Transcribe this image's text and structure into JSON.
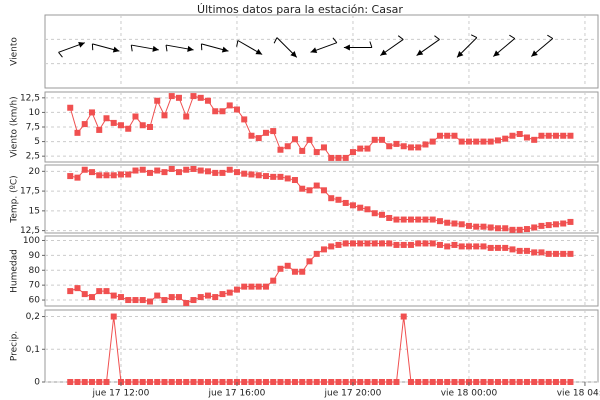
{
  "chart_data": {
    "type": "line",
    "title": "Últimos datos para la estación: Casar",
    "color": "#f05050",
    "grid": true,
    "x": [
      10.25,
      10.5,
      10.75,
      11,
      11.25,
      11.5,
      11.75,
      12,
      12.25,
      12.5,
      12.75,
      13,
      13.25,
      13.5,
      13.75,
      14,
      14.25,
      14.5,
      14.75,
      15,
      15.25,
      15.5,
      15.75,
      16,
      16.25,
      16.5,
      16.75,
      17,
      17.25,
      17.5,
      17.75,
      18,
      18.25,
      18.5,
      18.75,
      19,
      19.25,
      19.5,
      19.75,
      20,
      20.25,
      20.5,
      20.75,
      21,
      21.25,
      21.5,
      21.75,
      22,
      22.25,
      22.5,
      22.75,
      23,
      23.25,
      23.5,
      23.75,
      24,
      24.25,
      24.5,
      24.75,
      25,
      25.25,
      25.5,
      25.75,
      26,
      26.25,
      26.5,
      26.75,
      27,
      27.25,
      27.5
    ],
    "xlim": [
      9.38,
      28.45
    ],
    "xticks": [
      {
        "value": 12,
        "label": "jue 17 12:00"
      },
      {
        "value": 16,
        "label": "jue 17 16:00"
      },
      {
        "value": 20,
        "label": "jue 17 20:00"
      },
      {
        "value": 24,
        "label": "vie 18 00:00"
      },
      {
        "value": 28,
        "label": "vie 18 04:00"
      }
    ],
    "panels": [
      {
        "type": "arrows",
        "ylabel": "Viento",
        "x": [
          10.3,
          11.48,
          12.83,
          14.03,
          15.24,
          16.45,
          17.72,
          18.99,
          20.17,
          21.34,
          22.59,
          23.93,
          25.21,
          26.52
        ],
        "values": [
          70,
          105,
          100,
          100,
          105,
          120,
          135,
          250,
          270,
          235,
          235,
          225,
          230,
          230
        ]
      },
      {
        "type": "line",
        "ylabel": "Viento (km/h)",
        "ylim": [
          1.5,
          13.5
        ],
        "yticks": [
          {
            "value": 2.5,
            "label": "2,5"
          },
          5,
          {
            "value": 7.5,
            "label": "7,5"
          },
          10,
          {
            "value": 12.5,
            "label": "12,5"
          }
        ],
        "values": [
          10.8,
          6.5,
          8,
          10,
          7,
          9,
          8.2,
          7.8,
          7.2,
          9.3,
          7.8,
          7.5,
          12,
          9.5,
          12.8,
          12.5,
          9.3,
          12.8,
          12.5,
          12,
          10.2,
          10.2,
          11.2,
          10.5,
          8.8,
          6,
          5.6,
          6.5,
          6.8,
          3.6,
          4.2,
          5.4,
          3.4,
          5.3,
          3.2,
          4,
          2.2,
          2.2,
          2.2,
          3.2,
          3.8,
          3.8,
          5.3,
          5.3,
          4.2,
          4.6,
          4.2,
          4,
          4,
          4.5,
          5,
          6,
          6,
          6,
          5,
          5,
          5,
          5,
          5,
          5.2,
          5.5,
          6,
          6.3,
          5.7,
          5.3,
          6,
          6,
          6,
          6,
          6
        ]
      },
      {
        "type": "line",
        "ylabel": "Temp. (ºC)",
        "ylim": [
          12.2,
          20.8
        ],
        "yticks": [
          {
            "value": 12.5,
            "label": "12,5"
          },
          15,
          {
            "value": 17.5,
            "label": "17,5"
          },
          20
        ],
        "values": [
          19.4,
          19.2,
          20.2,
          19.9,
          19.5,
          19.5,
          19.5,
          19.6,
          19.6,
          20.1,
          20.2,
          19.8,
          20.1,
          19.9,
          20.3,
          19.9,
          20.2,
          20.3,
          20.1,
          20,
          19.8,
          19.8,
          20.2,
          19.9,
          19.7,
          19.6,
          19.5,
          19.4,
          19.3,
          19.3,
          19.1,
          18.9,
          17.8,
          17.6,
          18.2,
          17.6,
          16.6,
          16.4,
          16,
          15.7,
          15.4,
          15.2,
          14.7,
          14.5,
          14.1,
          13.9,
          13.9,
          13.9,
          13.9,
          13.9,
          13.9,
          13.7,
          13.5,
          13.4,
          13.3,
          13.1,
          13.0,
          13,
          12.9,
          12.8,
          12.8,
          12.6,
          12.6,
          12.7,
          12.9,
          13.1,
          13.2,
          13.3,
          13.4,
          13.6
        ]
      },
      {
        "type": "line",
        "ylabel": "Humedad",
        "ylim": [
          56,
          103
        ],
        "yticks": [
          60,
          70,
          80,
          90,
          100
        ],
        "values": [
          66,
          68,
          64,
          62,
          66,
          66,
          63,
          62,
          60,
          60,
          60,
          59,
          63,
          60,
          62,
          62,
          58,
          60,
          62,
          63,
          62,
          64,
          65,
          67,
          69,
          69,
          69,
          69,
          73,
          81,
          83,
          79,
          79,
          86,
          91,
          94,
          96,
          97,
          98,
          98,
          98,
          98,
          98,
          98,
          98,
          97,
          97,
          97,
          98,
          98,
          98,
          97,
          96,
          97,
          96,
          96,
          96,
          96,
          95,
          95,
          95,
          94,
          93,
          93,
          92,
          92,
          91,
          91,
          91,
          91
        ]
      },
      {
        "type": "line",
        "ylabel": "Precip.",
        "ylim": [
          0,
          0.22
        ],
        "yticks": [
          0,
          {
            "value": 0.1,
            "label": "0,1"
          },
          {
            "value": 0.2,
            "label": "0,2"
          }
        ],
        "values": [
          0,
          0,
          0,
          0,
          0,
          0,
          0.2,
          0,
          0,
          0,
          0,
          0,
          0,
          0,
          0,
          0,
          0,
          0,
          0,
          0,
          0,
          0,
          0,
          0,
          0,
          0,
          0,
          0,
          0,
          0,
          0,
          0,
          0,
          0,
          0,
          0,
          0,
          0,
          0,
          0,
          0,
          0,
          0,
          0,
          0,
          0,
          0.2,
          0,
          0,
          0,
          0,
          0,
          0,
          0,
          0,
          0,
          0,
          0,
          0,
          0,
          0,
          0,
          0,
          0,
          0,
          0,
          0,
          0,
          0,
          0
        ]
      }
    ]
  }
}
